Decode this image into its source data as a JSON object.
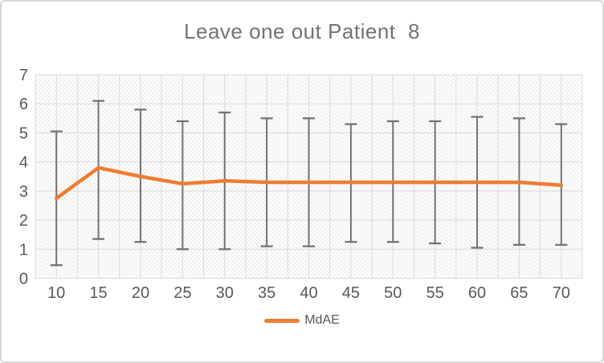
{
  "window": {
    "background": "#ffffff",
    "border_color": "#d6d6d6"
  },
  "chart_data": {
    "type": "line",
    "title": "Leave one out Patient  8",
    "title_color": "#737373",
    "categories": [
      10,
      15,
      20,
      25,
      30,
      35,
      40,
      45,
      50,
      55,
      60,
      65,
      70
    ],
    "series": [
      {
        "name": "MdAE",
        "color": "#ED7D31",
        "values": [
          2.75,
          3.8,
          3.5,
          3.25,
          3.35,
          3.3,
          3.3,
          3.3,
          3.3,
          3.3,
          3.3,
          3.3,
          3.2
        ],
        "error_top": [
          5.05,
          6.1,
          5.8,
          5.4,
          5.7,
          5.5,
          5.5,
          5.3,
          5.4,
          5.4,
          5.55,
          5.5,
          5.3
        ],
        "error_bottom": [
          0.45,
          1.35,
          1.25,
          1.0,
          1.0,
          1.1,
          1.1,
          1.25,
          1.25,
          1.2,
          1.05,
          1.15,
          1.15
        ]
      }
    ],
    "xlabel": "",
    "ylabel": "",
    "ylim": [
      0,
      7
    ],
    "yticks": [
      0,
      1,
      2,
      3,
      4,
      5,
      6,
      7
    ],
    "grid": {
      "horizontal": "every 1 unit",
      "vertical": "every half category",
      "color": "#d9d9d9",
      "plot_fill": "light diagonal hatch",
      "hatch_color": "#e7e7e7"
    },
    "error_bar_color": "#737373",
    "axis_label_color": "#595959",
    "legend": {
      "position": "bottom-center",
      "entries": [
        "MdAE"
      ]
    }
  }
}
